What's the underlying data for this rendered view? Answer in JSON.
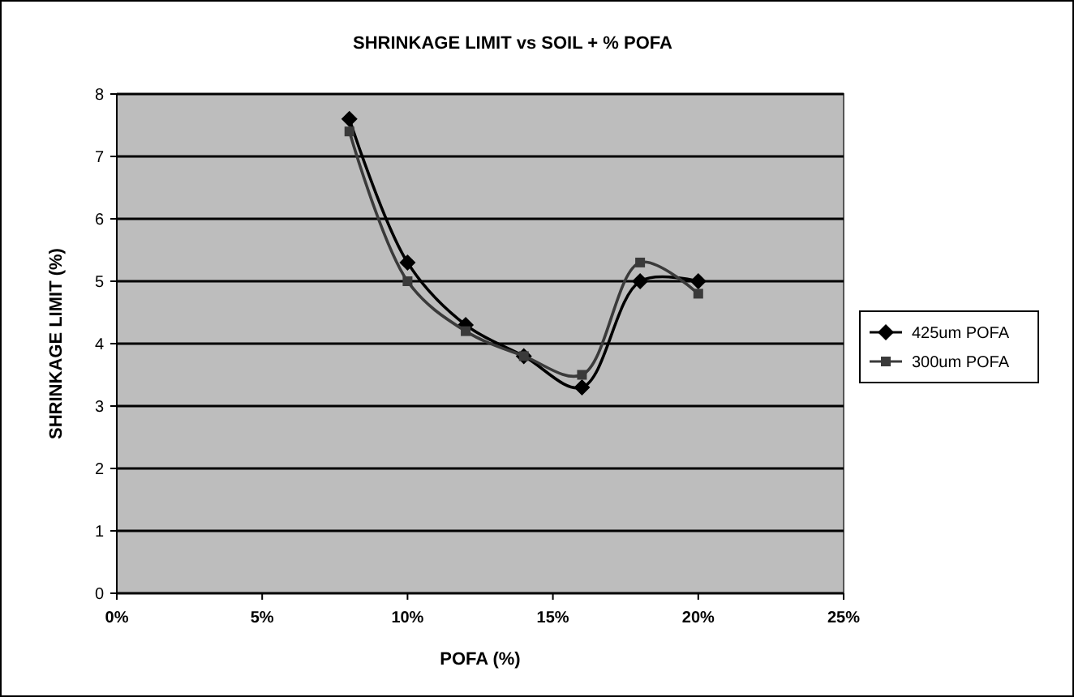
{
  "chart_data": {
    "type": "line",
    "title": "SHRINKAGE LIMIT vs SOIL + % POFA",
    "xlabel": "POFA (%)",
    "ylabel": "SHRINKAGE LIMIT (%)",
    "x": [
      8,
      10,
      12,
      14,
      16,
      18,
      20
    ],
    "series": [
      {
        "name": "425um POFA",
        "color": "#000000",
        "marker": "diamond",
        "values": [
          7.6,
          5.3,
          4.3,
          3.8,
          3.3,
          5.0,
          5.0
        ]
      },
      {
        "name": "300um POFA",
        "color": "#3a3a3a",
        "marker": "square",
        "values": [
          7.4,
          5.0,
          4.2,
          3.8,
          3.5,
          5.3,
          4.8
        ]
      }
    ],
    "xlim": [
      0,
      25
    ],
    "xticks": [
      {
        "value": 0,
        "label": "0%"
      },
      {
        "value": 5,
        "label": "5%"
      },
      {
        "value": 10,
        "label": "10%"
      },
      {
        "value": 15,
        "label": "15%"
      },
      {
        "value": 20,
        "label": "20%"
      },
      {
        "value": 25,
        "label": "25%"
      }
    ],
    "ylim": [
      0,
      8
    ],
    "yticks": [
      0,
      1,
      2,
      3,
      4,
      5,
      6,
      7,
      8
    ],
    "grid": "y",
    "legend": "right",
    "line_style": "solid"
  }
}
